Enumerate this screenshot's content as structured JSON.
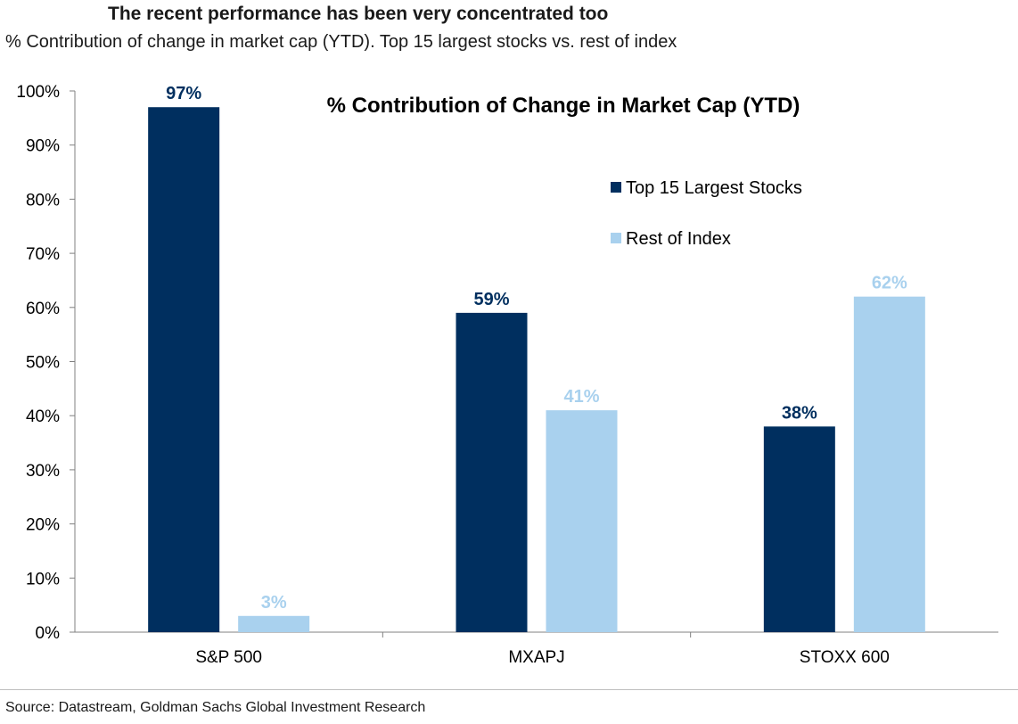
{
  "header": {
    "title": "The recent performance has been very concentrated too",
    "subtitle": "% Contribution of change in market cap (YTD). Top 15 largest stocks vs. rest of index"
  },
  "footer": {
    "source": "Source: Datastream, Goldman Sachs Global Investment Research"
  },
  "chart_data": {
    "type": "bar",
    "title": "% Contribution of Change in Market Cap (YTD)",
    "categories": [
      "S&P 500",
      "MXAPJ",
      "STOXX 600"
    ],
    "series": [
      {
        "name": "Top 15 Largest Stocks",
        "values": [
          97,
          59,
          38
        ],
        "labels": [
          "97%",
          "59%",
          "38%"
        ],
        "color": "#002f5f"
      },
      {
        "name": "Rest of Index",
        "values": [
          3,
          41,
          62
        ],
        "labels": [
          "3%",
          "41%",
          "62%"
        ],
        "color": "#a9d1ee"
      }
    ],
    "ylim": [
      0,
      100
    ],
    "yticks": [
      0,
      10,
      20,
      30,
      40,
      50,
      60,
      70,
      80,
      90,
      100
    ],
    "ytick_labels": [
      "0%",
      "10%",
      "20%",
      "30%",
      "40%",
      "50%",
      "60%",
      "70%",
      "80%",
      "90%",
      "100%"
    ],
    "xlabel": "",
    "ylabel": "",
    "grid": false,
    "legend_position": "top-right"
  }
}
